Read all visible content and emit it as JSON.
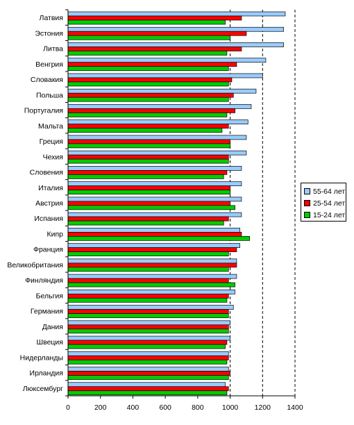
{
  "chart_data": {
    "type": "bar",
    "orientation": "horizontal",
    "categories": [
      "Латвия",
      "Эстония",
      "Литва",
      "Венгрия",
      "Словакия",
      "Польша",
      "Португалия",
      "Мальта",
      "Греция",
      "Чехия",
      "Словения",
      "Италия",
      "Австрия",
      "Испания",
      "Кипр",
      "Франция",
      "Великобритания",
      "Финляндия",
      "Бельгия",
      "Германия",
      "Дания",
      "Швеция",
      "Нидерланды",
      "Ирландия",
      "Люксембург"
    ],
    "series": [
      {
        "name": "55-64 лет",
        "color": "#99ccff",
        "values": [
          1340,
          1330,
          1330,
          1220,
          1200,
          1160,
          1130,
          1110,
          1100,
          1100,
          1070,
          1070,
          1070,
          1070,
          1060,
          1060,
          1040,
          1040,
          1030,
          1020,
          1000,
          1000,
          990,
          990,
          970
        ]
      },
      {
        "name": "25-54 лет",
        "color": "#ff0000",
        "values": [
          1070,
          1100,
          1070,
          1040,
          1010,
          1020,
          1030,
          990,
          1000,
          990,
          980,
          1000,
          1000,
          990,
          1070,
          1040,
          1040,
          990,
          990,
          990,
          990,
          980,
          990,
          1000,
          990
        ]
      },
      {
        "name": "15-24 лет",
        "color": "#00cc00",
        "values": [
          970,
          1000,
          980,
          990,
          990,
          990,
          980,
          950,
          1000,
          990,
          960,
          1000,
          1030,
          960,
          1120,
          990,
          990,
          1030,
          980,
          990,
          990,
          970,
          980,
          990,
          980
        ]
      }
    ],
    "xlim": [
      0,
      1400
    ],
    "xticks": [
      0,
      200,
      400,
      600,
      800,
      1000,
      1200,
      1400
    ],
    "gridlines_at": [
      1000,
      1200,
      1400
    ],
    "grid_style": "dashed",
    "legend_position": "right"
  }
}
